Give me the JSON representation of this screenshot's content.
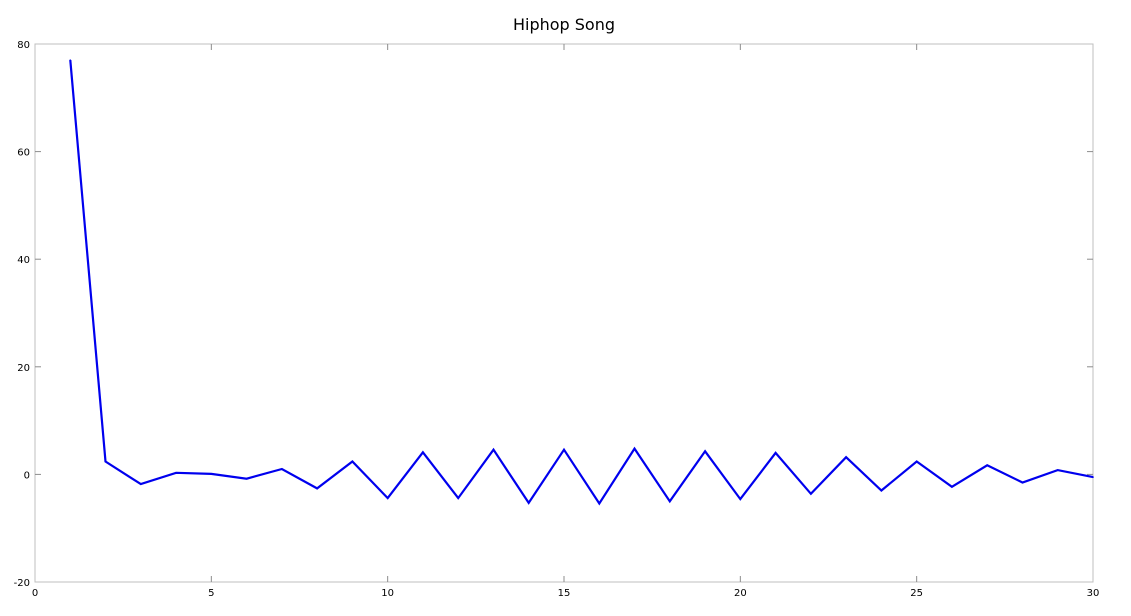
{
  "chart_data": {
    "type": "line",
    "title": "Hiphop Song",
    "xlabel": "",
    "ylabel": "",
    "xlim": [
      0,
      30
    ],
    "ylim": [
      -20,
      80
    ],
    "xticks": [
      0,
      5,
      10,
      15,
      20,
      25,
      30
    ],
    "yticks": [
      -20,
      0,
      20,
      40,
      60,
      80
    ],
    "grid": false,
    "series": [
      {
        "color": "#0000ee",
        "x": [
          1,
          2,
          3,
          4,
          5,
          6,
          7,
          8,
          9,
          10,
          11,
          12,
          13,
          14,
          15,
          16,
          17,
          18,
          19,
          20,
          21,
          22,
          23,
          24,
          25,
          26,
          27,
          28,
          29,
          30
        ],
        "y": [
          77.0,
          2.4,
          -1.8,
          0.3,
          0.1,
          -0.8,
          1.0,
          -2.6,
          2.4,
          -4.4,
          4.1,
          -4.4,
          4.6,
          -5.3,
          4.6,
          -5.4,
          4.8,
          -5.0,
          4.3,
          -4.6,
          4.0,
          -3.6,
          3.2,
          -3.0,
          2.4,
          -2.3,
          1.7,
          -1.5,
          0.8,
          -0.5
        ]
      }
    ]
  }
}
